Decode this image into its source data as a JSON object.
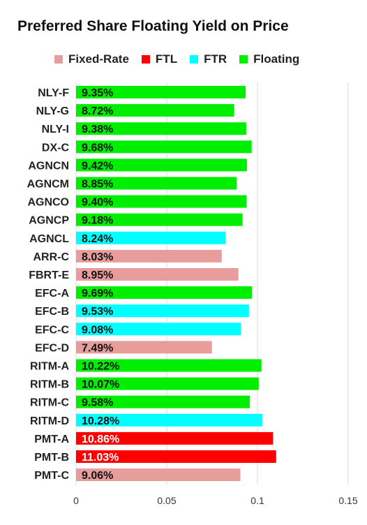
{
  "chart_data": {
    "type": "bar",
    "orientation": "horizontal",
    "title": "Preferred Share Floating Yield on Price",
    "xlabel": "",
    "ylabel": "",
    "xlim": [
      0,
      0.15
    ],
    "x_ticks": [
      {
        "value": 0,
        "label": "0"
      },
      {
        "value": 0.05,
        "label": "0.05"
      },
      {
        "value": 0.1,
        "label": "0.1"
      },
      {
        "value": 0.15,
        "label": "0.15"
      }
    ],
    "grid": true,
    "legend_position": "top",
    "legend": [
      {
        "name": "Fixed-Rate",
        "color": "#e89d9d"
      },
      {
        "name": "FTL",
        "color": "#ff0000"
      },
      {
        "name": "FTR",
        "color": "#00ffff"
      },
      {
        "name": "Floating",
        "color": "#00ee00"
      }
    ],
    "bars": [
      {
        "category": "NLY-F",
        "value": 0.0935,
        "label": "9.35%",
        "type": "Floating"
      },
      {
        "category": "NLY-G",
        "value": 0.0872,
        "label": "8.72%",
        "type": "Floating"
      },
      {
        "category": "NLY-I",
        "value": 0.0938,
        "label": "9.38%",
        "type": "Floating"
      },
      {
        "category": "DX-C",
        "value": 0.0968,
        "label": "9.68%",
        "type": "Floating"
      },
      {
        "category": "AGNCN",
        "value": 0.0942,
        "label": "9.42%",
        "type": "Floating"
      },
      {
        "category": "AGNCM",
        "value": 0.0885,
        "label": "8.85%",
        "type": "Floating"
      },
      {
        "category": "AGNCO",
        "value": 0.094,
        "label": "9.40%",
        "type": "Floating"
      },
      {
        "category": "AGNCP",
        "value": 0.0918,
        "label": "9.18%",
        "type": "Floating"
      },
      {
        "category": "AGNCL",
        "value": 0.0824,
        "label": "8.24%",
        "type": "FTR"
      },
      {
        "category": "ARR-C",
        "value": 0.0803,
        "label": "8.03%",
        "type": "Fixed-Rate"
      },
      {
        "category": "FBRT-E",
        "value": 0.0895,
        "label": "8.95%",
        "type": "Fixed-Rate"
      },
      {
        "category": "EFC-A",
        "value": 0.0969,
        "label": "9.69%",
        "type": "Floating"
      },
      {
        "category": "EFC-B",
        "value": 0.0953,
        "label": "9.53%",
        "type": "FTR"
      },
      {
        "category": "EFC-C",
        "value": 0.0908,
        "label": "9.08%",
        "type": "FTR"
      },
      {
        "category": "EFC-D",
        "value": 0.0749,
        "label": "7.49%",
        "type": "Fixed-Rate"
      },
      {
        "category": "RITM-A",
        "value": 0.1022,
        "label": "10.22%",
        "type": "Floating"
      },
      {
        "category": "RITM-B",
        "value": 0.1007,
        "label": "10.07%",
        "type": "Floating"
      },
      {
        "category": "RITM-C",
        "value": 0.0958,
        "label": "9.58%",
        "type": "Floating"
      },
      {
        "category": "RITM-D",
        "value": 0.1028,
        "label": "10.28%",
        "type": "FTR"
      },
      {
        "category": "PMT-A",
        "value": 0.1086,
        "label": "10.86%",
        "type": "FTL"
      },
      {
        "category": "PMT-B",
        "value": 0.1103,
        "label": "11.03%",
        "type": "FTL"
      },
      {
        "category": "PMT-C",
        "value": 0.0906,
        "label": "9.06%",
        "type": "Fixed-Rate"
      }
    ]
  }
}
